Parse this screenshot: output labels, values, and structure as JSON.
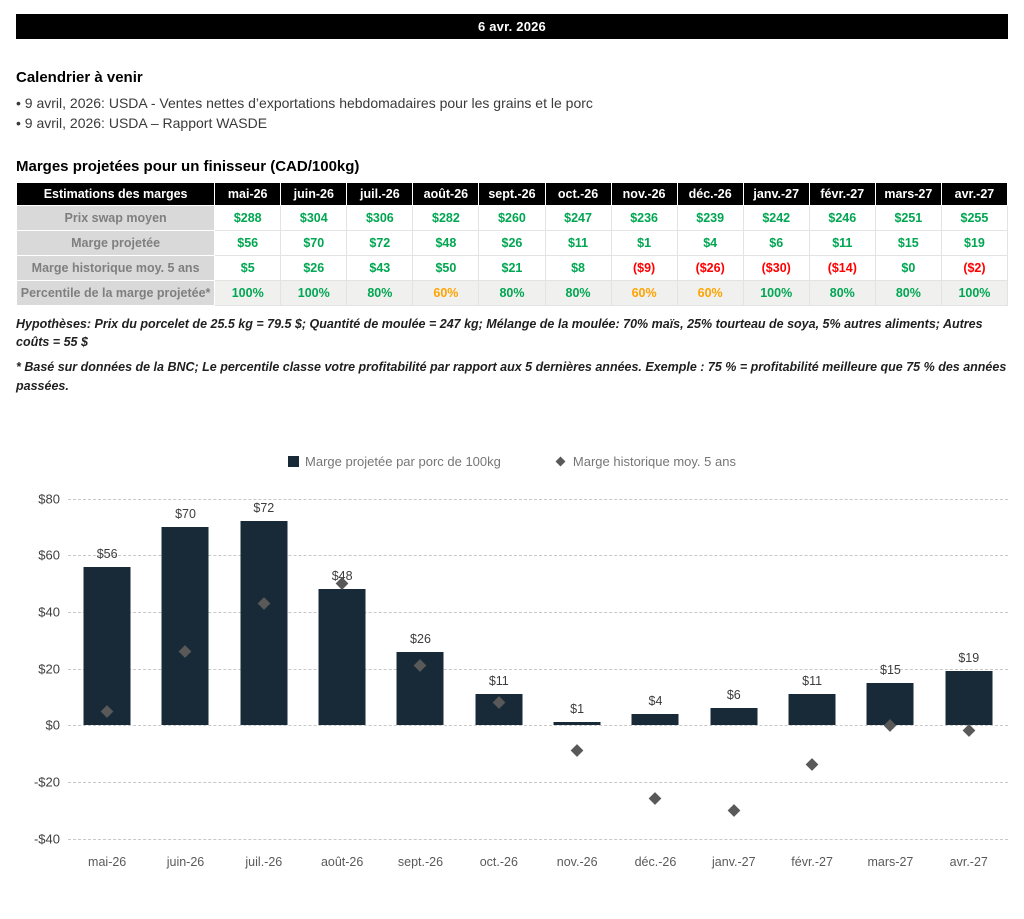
{
  "header": {
    "date": "6 avr. 2026"
  },
  "calendar": {
    "title": "Calendrier à venir",
    "items": [
      "• 9 avril, 2026: USDA - Ventes nettes d’exportations hebdomadaires pour les grains et le porc",
      "• 9 avril, 2026: USDA – Rapport WASDE"
    ]
  },
  "margins": {
    "title": "Marges projetées pour un finisseur (CAD/100kg)",
    "table": {
      "header": [
        "Estimations des marges",
        "mai-26",
        "juin-26",
        "juil.-26",
        "août-26",
        "sept.-26",
        "oct.-26",
        "nov.-26",
        "déc.-26",
        "janv.-27",
        "févr.-27",
        "mars-27",
        "avr.-27"
      ],
      "rows": [
        {
          "label": "Prix swap moyen",
          "values": [
            "$288",
            "$304",
            "$306",
            "$282",
            "$260",
            "$247",
            "$236",
            "$239",
            "$242",
            "$246",
            "$251",
            "$255"
          ]
        },
        {
          "label": "Marge projetée",
          "values": [
            "$56",
            "$70",
            "$72",
            "$48",
            "$26",
            "$11",
            "$1",
            "$4",
            "$6",
            "$11",
            "$15",
            "$19"
          ]
        },
        {
          "label": "Marge historique moy. 5 ans",
          "values": [
            "$5",
            "$26",
            "$43",
            "$50",
            "$21",
            "$8",
            "($9)",
            "($26)",
            "($30)",
            "($14)",
            "$0",
            "($2)"
          ]
        },
        {
          "label": "Percentile de la marge projetée*",
          "values": [
            "100%",
            "100%",
            "80%",
            "60%",
            "80%",
            "80%",
            "60%",
            "60%",
            "100%",
            "80%",
            "80%",
            "100%"
          ]
        }
      ]
    },
    "footnotes": [
      "Hypothèses: Prix du porcelet de 25.5 kg = 79.5 $; Quantité de moulée = 247 kg; Mélange de la moulée: 70% maïs, 25% tourteau de soya, 5% autres aliments; Autres coûts = 55 $",
      "* Basé sur données de la BNC; Le percentile classe votre profitabilité par rapport aux 5 dernières années. Exemple : 75 % = profitabilité meilleure que 75 % des années passées."
    ]
  },
  "colors": {
    "positive": "#00A651",
    "negative": "#FF0000",
    "warning": "#FFA300",
    "bar": "#182A38",
    "diamond": "#595959",
    "header_bg": "#000000",
    "label_bg": "#D9D9D9",
    "label_text": "#7F7F7F"
  },
  "chart_data": {
    "type": "bar",
    "title": "",
    "categories": [
      "mai-26",
      "juin-26",
      "juil.-26",
      "août-26",
      "sept.-26",
      "oct.-26",
      "nov.-26",
      "déc.-26",
      "janv.-27",
      "févr.-27",
      "mars-27",
      "avr.-27"
    ],
    "series": [
      {
        "name": "Marge projetée par porc de 100kg",
        "type": "bar",
        "values": [
          56,
          70,
          72,
          48,
          26,
          11,
          1,
          4,
          6,
          11,
          15,
          19
        ],
        "labels": [
          "$56",
          "$70",
          "$72",
          "$48",
          "$26",
          "$11",
          "$1",
          "$4",
          "$6",
          "$11",
          "$15",
          "$19"
        ],
        "color": "#182A38"
      },
      {
        "name": "Marge historique moy. 5 ans",
        "type": "scatter",
        "marker": "diamond",
        "values": [
          5,
          26,
          43,
          50,
          21,
          8,
          -9,
          -26,
          -30,
          -14,
          0,
          -2
        ],
        "color": "#595959"
      }
    ],
    "ylim": [
      -40,
      80
    ],
    "ytick_values": [
      80,
      60,
      40,
      20,
      0,
      -20,
      -40
    ],
    "ytick_labels": [
      "$80",
      "$60",
      "$40",
      "$20",
      "$0",
      "-$20",
      "-$40"
    ],
    "grid": "horizontal-dashed",
    "legend_position": "top"
  }
}
